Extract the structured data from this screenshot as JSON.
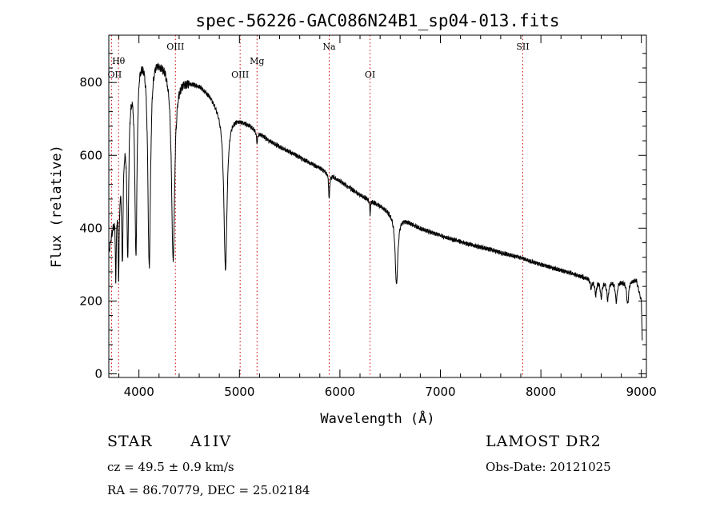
{
  "chart_data": {
    "type": "line",
    "title": "spec-56226-GAC086N24B1_sp04-013.fits",
    "xlabel": "Wavelength (Å)",
    "ylabel": "Flux (relative)",
    "xlim": [
      3700,
      9050
    ],
    "ylim": [
      -10,
      930
    ],
    "x_ticks": [
      4000,
      5000,
      6000,
      7000,
      8000,
      9000
    ],
    "y_ticks": [
      0,
      200,
      400,
      600,
      800
    ],
    "grid": false,
    "line_color": "#000000",
    "marker_color": "#cc0000",
    "line_markers": [
      {
        "label": "OII",
        "x": 3727
      },
      {
        "label": "Hθ",
        "x": 3797
      },
      {
        "label": "OIII",
        "x": 4363
      },
      {
        "label": "OIII",
        "x": 5007
      },
      {
        "label": "Mg",
        "x": 5175
      },
      {
        "label": "Na",
        "x": 5893
      },
      {
        "label": "OI",
        "x": 6300
      },
      {
        "label": "SII",
        "x": 7820
      }
    ],
    "continuum": [
      [
        3700,
        340
      ],
      [
        3800,
        520
      ],
      [
        3900,
        800
      ],
      [
        4000,
        890
      ],
      [
        4100,
        900
      ],
      [
        4200,
        870
      ],
      [
        4300,
        850
      ],
      [
        4400,
        815
      ],
      [
        4500,
        805
      ],
      [
        4600,
        795
      ],
      [
        4700,
        770
      ],
      [
        4800,
        730
      ],
      [
        4900,
        712
      ],
      [
        5000,
        700
      ],
      [
        5100,
        685
      ],
      [
        5200,
        662
      ],
      [
        5300,
        640
      ],
      [
        5400,
        625
      ],
      [
        5500,
        610
      ],
      [
        5600,
        595
      ],
      [
        5700,
        580
      ],
      [
        5800,
        565
      ],
      [
        5900,
        548
      ],
      [
        6000,
        530
      ],
      [
        6100,
        510
      ],
      [
        6200,
        492
      ],
      [
        6300,
        477
      ],
      [
        6400,
        462
      ],
      [
        6500,
        445
      ],
      [
        6600,
        430
      ],
      [
        6700,
        415
      ],
      [
        6800,
        400
      ],
      [
        6900,
        390
      ],
      [
        7000,
        380
      ],
      [
        7200,
        363
      ],
      [
        7400,
        348
      ],
      [
        7600,
        333
      ],
      [
        7800,
        318
      ],
      [
        8000,
        300
      ],
      [
        8200,
        285
      ],
      [
        8400,
        268
      ],
      [
        8600,
        255
      ],
      [
        8800,
        255
      ],
      [
        8950,
        258
      ],
      [
        9000,
        200
      ],
      [
        9010,
        80
      ]
    ],
    "absorption_lines": [
      {
        "x": 3770,
        "depth": 190,
        "width": 5
      },
      {
        "x": 3798,
        "depth": 230,
        "width": 6
      },
      {
        "x": 3835,
        "depth": 290,
        "width": 8
      },
      {
        "x": 3889,
        "depth": 430,
        "width": 11
      },
      {
        "x": 3970,
        "depth": 520,
        "width": 13
      },
      {
        "x": 4102,
        "depth": 600,
        "width": 16
      },
      {
        "x": 4340,
        "depth": 520,
        "width": 19
      },
      {
        "x": 4861,
        "depth": 430,
        "width": 19
      },
      {
        "x": 5175,
        "depth": 30,
        "width": 8
      },
      {
        "x": 5893,
        "depth": 70,
        "width": 6
      },
      {
        "x": 6300,
        "depth": 40,
        "width": 4
      },
      {
        "x": 6563,
        "depth": 190,
        "width": 16
      },
      {
        "x": 8500,
        "depth": 25,
        "width": 9
      },
      {
        "x": 8545,
        "depth": 40,
        "width": 10
      },
      {
        "x": 8600,
        "depth": 45,
        "width": 10
      },
      {
        "x": 8665,
        "depth": 50,
        "width": 11
      },
      {
        "x": 8750,
        "depth": 55,
        "width": 11
      },
      {
        "x": 8863,
        "depth": 65,
        "width": 12
      }
    ]
  },
  "info": {
    "object_type": "STAR",
    "spectral_class": "A1IV",
    "survey": "LAMOST DR2",
    "redshift": "cz = 49.5 ± 0.9 km/s",
    "obs_date": "Obs-Date: 20121025",
    "coordinates": "RA =  86.70779, DEC =  25.02184"
  }
}
